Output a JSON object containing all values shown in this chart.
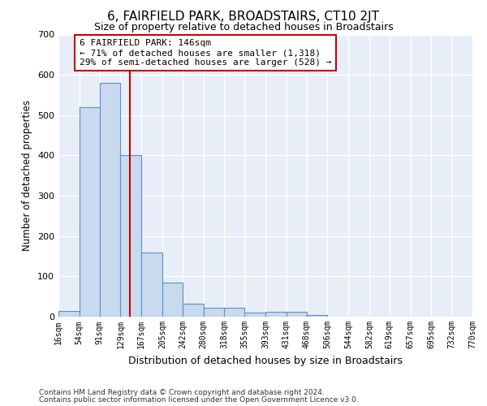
{
  "title": "6, FAIRFIELD PARK, BROADSTAIRS, CT10 2JT",
  "subtitle": "Size of property relative to detached houses in Broadstairs",
  "xlabel": "Distribution of detached houses by size in Broadstairs",
  "ylabel": "Number of detached properties",
  "footnote1": "Contains HM Land Registry data © Crown copyright and database right 2024.",
  "footnote2": "Contains public sector information licensed under the Open Government Licence v3.0.",
  "annotation_title": "6 FAIRFIELD PARK: 146sqm",
  "annotation_line1": "← 71% of detached houses are smaller (1,318)",
  "annotation_line2": "29% of semi-detached houses are larger (528) →",
  "property_size": 146,
  "bar_color": "#c9d9ee",
  "bar_edge_color": "#5b8fc9",
  "vline_color": "#cc0000",
  "bg_color": "#e8eef8",
  "annotation_box_color": "#ffffff",
  "annotation_box_edge": "#cc0000",
  "bins": [
    16,
    54,
    91,
    129,
    167,
    205,
    242,
    280,
    318,
    355,
    393,
    431,
    468,
    506,
    544,
    582,
    619,
    657,
    695,
    732,
    770
  ],
  "bin_labels": [
    "16sqm",
    "54sqm",
    "91sqm",
    "129sqm",
    "167sqm",
    "205sqm",
    "242sqm",
    "280sqm",
    "318sqm",
    "355sqm",
    "393sqm",
    "431sqm",
    "468sqm",
    "506sqm",
    "544sqm",
    "582sqm",
    "619sqm",
    "657sqm",
    "695sqm",
    "732sqm",
    "770sqm"
  ],
  "counts": [
    15,
    520,
    580,
    400,
    160,
    85,
    33,
    22,
    22,
    10,
    13,
    13,
    5,
    0,
    0,
    0,
    0,
    0,
    0,
    0
  ],
  "ylim": [
    0,
    700
  ],
  "yticks": [
    0,
    100,
    200,
    300,
    400,
    500,
    600,
    700
  ]
}
